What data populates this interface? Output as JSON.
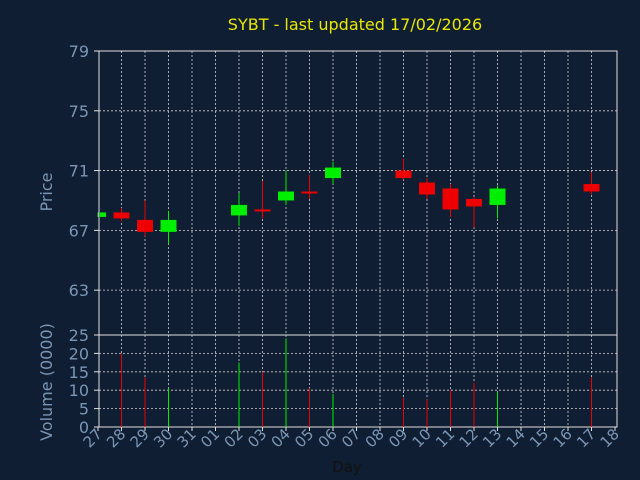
{
  "chart_data": {
    "type": "candlestick",
    "title": "SYBT - last updated 17/02/2026",
    "xlabel": "Day",
    "price_panel": {
      "ylabel": "Price",
      "ylim": [
        60,
        79
      ],
      "yticks": [
        63,
        67,
        71,
        75,
        79
      ]
    },
    "volume_panel": {
      "ylabel": "Volume (0000)",
      "ylim": [
        0,
        25
      ],
      "yticks": [
        0,
        5,
        10,
        15,
        20,
        25
      ]
    },
    "x_tick_labels": [
      "27",
      "28",
      "29",
      "30",
      "31",
      "01",
      "02",
      "03",
      "04",
      "05",
      "06",
      "07",
      "08",
      "09",
      "10",
      "11",
      "12",
      "13",
      "14",
      "15",
      "16",
      "17",
      "18"
    ],
    "candles": [
      {
        "day": "27",
        "open": 67.9,
        "close": 68.2,
        "high": 68.2,
        "low": 67.9,
        "volume": 0
      },
      {
        "day": "28",
        "open": 68.2,
        "close": 67.8,
        "high": 68.5,
        "low": 67.6,
        "volume": 20
      },
      {
        "day": "29",
        "open": 67.7,
        "close": 66.9,
        "high": 69.0,
        "low": 66.6,
        "volume": 13.5
      },
      {
        "day": "30",
        "open": 66.9,
        "close": 67.7,
        "high": 68.3,
        "low": 66.1,
        "volume": 10.5
      },
      {
        "day": "02",
        "open": 68.0,
        "close": 68.7,
        "high": 69.5,
        "low": 67.3,
        "volume": 17.5
      },
      {
        "day": "03",
        "open": 68.4,
        "close": 68.3,
        "high": 70.3,
        "low": 67.8,
        "volume": 15
      },
      {
        "day": "04",
        "open": 69.0,
        "close": 69.6,
        "high": 71.0,
        "low": 68.7,
        "volume": 24
      },
      {
        "day": "05",
        "open": 69.6,
        "close": 69.5,
        "high": 70.7,
        "low": 69.1,
        "volume": 10.5
      },
      {
        "day": "06",
        "open": 70.5,
        "close": 71.2,
        "high": 71.6,
        "low": 70.1,
        "volume": 9
      },
      {
        "day": "09",
        "open": 71.0,
        "close": 70.5,
        "high": 71.8,
        "low": 70.4,
        "volume": 8
      },
      {
        "day": "10",
        "open": 70.2,
        "close": 69.4,
        "high": 70.5,
        "low": 69.1,
        "volume": 7.5
      },
      {
        "day": "11",
        "open": 69.8,
        "close": 68.4,
        "high": 70.1,
        "low": 67.9,
        "volume": 10
      },
      {
        "day": "12",
        "open": 69.1,
        "close": 68.6,
        "high": 69.2,
        "low": 67.2,
        "volume": 12
      },
      {
        "day": "13",
        "open": 68.7,
        "close": 69.8,
        "high": 70.0,
        "low": 67.8,
        "volume": 9.5
      },
      {
        "day": "17",
        "open": 70.1,
        "close": 69.6,
        "high": 70.9,
        "low": 69.4,
        "volume": 13.5
      }
    ],
    "grid": true,
    "colors": {
      "background": "#0f1e32",
      "title": "#e8e800",
      "axis_text": "#7b96b4",
      "up": "#00ee00",
      "down": "#ee0000",
      "grid": "#d0d0d0"
    }
  }
}
